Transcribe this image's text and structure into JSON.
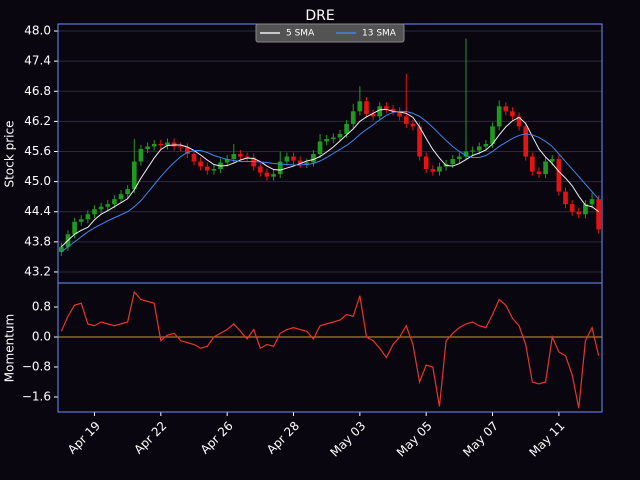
{
  "chart_data": [
    {
      "type": "candlestick",
      "title": "DRE",
      "ylabel": "Stock price",
      "categories": [
        null,
        null,
        null,
        null,
        null,
        "Apr 19",
        null,
        null,
        null,
        null,
        null,
        null,
        null,
        null,
        null,
        "Apr 22",
        null,
        null,
        null,
        null,
        null,
        null,
        null,
        null,
        null,
        "Apr 26",
        null,
        null,
        null,
        null,
        null,
        null,
        null,
        null,
        null,
        "Apr 28",
        null,
        null,
        null,
        null,
        null,
        null,
        null,
        null,
        null,
        "May 03",
        null,
        null,
        null,
        null,
        null,
        null,
        null,
        null,
        null,
        "May 05",
        null,
        null,
        null,
        null,
        null,
        null,
        null,
        null,
        null,
        "May 07",
        null,
        null,
        null,
        null,
        null,
        null,
        null,
        null,
        null,
        "May 11",
        null,
        null,
        null,
        null,
        null,
        null
      ],
      "open": [
        43.6,
        43.7,
        43.95,
        44.2,
        44.25,
        44.35,
        44.45,
        44.5,
        44.55,
        44.65,
        44.75,
        44.85,
        45.4,
        45.65,
        45.7,
        45.75,
        45.72,
        45.78,
        45.7,
        45.68,
        45.55,
        45.4,
        45.3,
        45.22,
        45.25,
        45.38,
        45.45,
        45.55,
        45.5,
        45.48,
        45.3,
        45.18,
        45.1,
        45.15,
        45.4,
        45.5,
        45.42,
        45.35,
        45.38,
        45.55,
        45.8,
        45.85,
        45.88,
        45.95,
        46.15,
        46.4,
        46.6,
        46.35,
        46.3,
        46.5,
        46.45,
        46.4,
        46.3,
        46.15,
        46.1,
        45.5,
        45.25,
        45.2,
        45.3,
        45.35,
        45.45,
        45.5,
        45.6,
        45.62,
        45.7,
        45.75,
        46.1,
        46.5,
        46.4,
        46.3,
        46.1,
        45.5,
        45.2,
        45.15,
        45.4,
        45.45,
        44.8,
        44.55,
        44.4,
        44.35,
        44.55,
        44.65
      ],
      "high": [
        43.78,
        44.03,
        44.28,
        44.33,
        44.43,
        44.53,
        44.58,
        44.63,
        44.73,
        44.83,
        44.93,
        45.85,
        45.73,
        45.78,
        45.83,
        45.83,
        45.86,
        45.86,
        45.78,
        45.76,
        45.63,
        45.48,
        45.38,
        45.33,
        45.46,
        45.53,
        45.75,
        45.63,
        45.58,
        45.56,
        45.38,
        45.26,
        45.23,
        45.6,
        45.58,
        45.58,
        45.5,
        45.46,
        45.63,
        45.95,
        45.93,
        45.96,
        46.03,
        46.23,
        46.55,
        46.9,
        46.68,
        46.43,
        46.58,
        46.58,
        46.53,
        46.48,
        47.15,
        46.23,
        46.18,
        45.58,
        45.33,
        45.38,
        45.43,
        45.53,
        45.58,
        47.85,
        45.7,
        45.78,
        45.83,
        46.18,
        46.62,
        46.58,
        46.48,
        46.38,
        46.18,
        45.58,
        45.28,
        45.48,
        45.53,
        45.53,
        44.88,
        44.63,
        44.48,
        44.63,
        44.78,
        44.73
      ],
      "low": [
        43.52,
        43.62,
        43.87,
        44.12,
        44.17,
        44.27,
        44.37,
        44.42,
        44.47,
        44.57,
        44.67,
        44.77,
        45.32,
        45.57,
        45.62,
        45.64,
        45.64,
        45.62,
        45.6,
        45.47,
        45.32,
        45.22,
        45.14,
        45.14,
        45.17,
        45.3,
        45.37,
        45.42,
        45.4,
        45.22,
        45.1,
        45.02,
        45.02,
        45.07,
        45.32,
        45.34,
        45.27,
        45.27,
        45.3,
        45.47,
        45.72,
        45.77,
        45.8,
        45.87,
        46.07,
        46.32,
        46.27,
        46.22,
        46.22,
        46.37,
        46.32,
        46.22,
        46.07,
        46.02,
        45.42,
        45.17,
        45.12,
        45.12,
        45.22,
        45.27,
        45.37,
        45.42,
        45.52,
        45.54,
        45.62,
        45.67,
        46.02,
        46.32,
        46.22,
        46.02,
        45.42,
        45.12,
        45.07,
        45.07,
        45.32,
        44.72,
        44.47,
        44.32,
        44.27,
        44.27,
        44.47,
        43.97
      ],
      "close": [
        43.7,
        43.95,
        44.2,
        44.25,
        44.35,
        44.45,
        44.5,
        44.55,
        44.65,
        44.75,
        44.85,
        45.4,
        45.65,
        45.7,
        45.75,
        45.72,
        45.78,
        45.7,
        45.68,
        45.55,
        45.4,
        45.3,
        45.22,
        45.25,
        45.38,
        45.45,
        45.55,
        45.5,
        45.48,
        45.3,
        45.18,
        45.1,
        45.15,
        45.4,
        45.5,
        45.42,
        45.35,
        45.38,
        45.55,
        45.8,
        45.85,
        45.88,
        45.95,
        46.15,
        46.4,
        46.6,
        46.35,
        46.3,
        46.5,
        46.45,
        46.4,
        46.3,
        46.15,
        46.1,
        45.5,
        45.25,
        45.2,
        45.3,
        45.35,
        45.45,
        45.5,
        45.6,
        45.62,
        45.7,
        45.75,
        46.1,
        46.5,
        46.4,
        46.3,
        46.1,
        45.5,
        45.2,
        45.15,
        45.4,
        45.45,
        44.8,
        44.55,
        44.4,
        44.35,
        44.55,
        44.65,
        44.05
      ],
      "up_color": "#1e9b1e",
      "down_color": "#e51414",
      "series": [
        {
          "name": "5 SMA",
          "color": "#f0f0f0",
          "values": [
            43.7,
            43.83,
            43.95,
            44.03,
            44.09,
            44.24,
            44.35,
            44.42,
            44.5,
            44.58,
            44.66,
            44.84,
            45.07,
            45.27,
            45.47,
            45.64,
            45.72,
            45.73,
            45.73,
            45.69,
            45.62,
            45.53,
            45.43,
            45.34,
            45.31,
            45.32,
            45.37,
            45.43,
            45.47,
            45.46,
            45.4,
            45.31,
            45.24,
            45.23,
            45.27,
            45.31,
            45.36,
            45.41,
            45.44,
            45.5,
            45.59,
            45.69,
            45.81,
            45.93,
            46.05,
            46.2,
            46.29,
            46.36,
            46.43,
            46.44,
            46.4,
            46.39,
            46.36,
            46.28,
            46.09,
            45.86,
            45.64,
            45.47,
            45.32,
            45.31,
            45.36,
            45.44,
            45.52,
            45.57,
            45.63,
            45.75,
            45.93,
            46.09,
            46.21,
            46.28,
            46.16,
            45.9,
            45.65,
            45.49,
            45.36,
            45.2,
            45.07,
            44.92,
            44.71,
            44.53,
            44.5,
            44.4
          ]
        },
        {
          "name": "13 SMA",
          "color": "#3f86e8",
          "values": [
            43.6,
            43.7,
            43.8,
            43.9,
            44.0,
            44.08,
            44.15,
            44.22,
            44.28,
            44.34,
            44.4,
            44.5,
            44.62,
            44.78,
            44.94,
            45.1,
            45.25,
            45.38,
            45.5,
            45.58,
            45.62,
            45.62,
            45.58,
            45.52,
            45.48,
            45.44,
            45.42,
            45.4,
            45.4,
            45.4,
            45.39,
            45.38,
            45.36,
            45.35,
            45.34,
            45.33,
            45.33,
            45.34,
            45.36,
            45.41,
            45.48,
            45.56,
            45.64,
            45.72,
            45.82,
            45.94,
            46.04,
            46.13,
            46.23,
            46.32,
            46.38,
            46.4,
            46.4,
            46.36,
            46.3,
            46.2,
            46.08,
            45.95,
            45.82,
            45.7,
            45.6,
            45.52,
            45.48,
            45.48,
            45.52,
            45.6,
            45.7,
            45.78,
            45.86,
            45.92,
            45.95,
            45.93,
            45.88,
            45.8,
            45.7,
            45.55,
            45.4,
            45.25,
            45.1,
            44.95,
            44.8,
            44.65
          ]
        }
      ],
      "ylim": [
        42.98,
        48.14
      ],
      "yticks": [
        43.2,
        43.8,
        44.4,
        {
          "value": 45.0,
          "label": "45.0"
        },
        45.6,
        46.2,
        46.8,
        47.4,
        {
          "value": 48.0,
          "label": "48.0"
        }
      ],
      "grid": true,
      "legend": "upper center"
    },
    {
      "type": "line",
      "ylabel": "Momentum",
      "color": "#e8342c",
      "values": [
        0.15,
        0.55,
        0.85,
        0.9,
        0.35,
        0.3,
        0.4,
        0.35,
        0.3,
        0.35,
        0.4,
        1.2,
        1.0,
        0.95,
        0.9,
        -0.1,
        0.05,
        0.1,
        -0.1,
        -0.15,
        -0.2,
        -0.3,
        -0.25,
        0.0,
        0.1,
        0.2,
        0.35,
        0.15,
        -0.05,
        0.2,
        -0.3,
        -0.2,
        -0.25,
        0.1,
        0.2,
        0.25,
        0.2,
        0.15,
        -0.05,
        0.3,
        0.35,
        0.4,
        0.45,
        0.6,
        0.55,
        1.1,
        0.0,
        -0.1,
        -0.3,
        -0.55,
        -0.2,
        0.0,
        0.3,
        -0.2,
        -1.2,
        -0.75,
        -0.8,
        -1.85,
        -0.1,
        0.1,
        0.25,
        0.35,
        0.4,
        0.3,
        0.25,
        0.6,
        1.0,
        0.85,
        0.5,
        0.3,
        -0.2,
        -1.2,
        -1.25,
        -1.2,
        0.0,
        -0.4,
        -0.5,
        -1.0,
        -1.9,
        -0.1,
        0.25,
        -0.5
      ],
      "hline": 0,
      "hline_color": "#c8a020",
      "ylim": [
        -2.0,
        1.44
      ],
      "yticks": [
        {
          "value": -1.6,
          "label": "−1.6"
        },
        {
          "value": -0.8,
          "label": "−0.8"
        },
        {
          "value": 0,
          "label": "0.0"
        },
        0.8
      ],
      "grid": false
    }
  ]
}
